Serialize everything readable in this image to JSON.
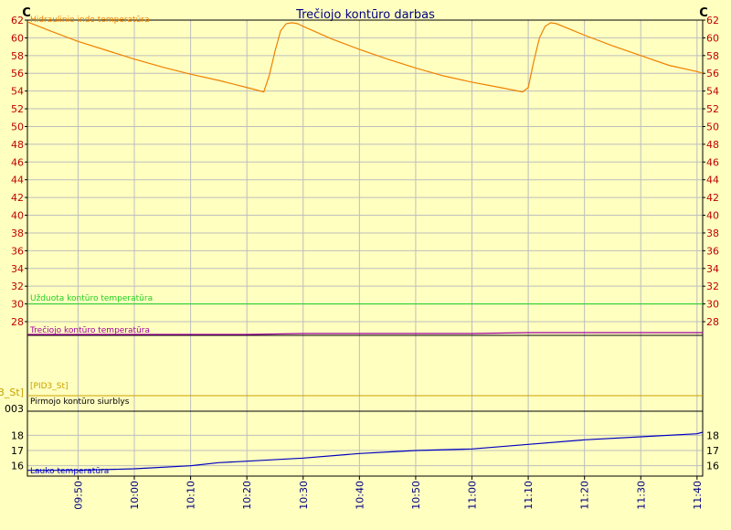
{
  "chart_data": {
    "type": "line",
    "title": "Trečiojo kontūro darbas",
    "y_unit_left": "C",
    "y_unit_right": "C",
    "upper_axis": {
      "ylim": [
        28,
        62
      ],
      "ticks": [
        28,
        30,
        32,
        34,
        36,
        38,
        40,
        42,
        44,
        46,
        48,
        50,
        52,
        54,
        56,
        58,
        60,
        62
      ]
    },
    "lower_axis": {
      "ylim": [
        15.5,
        18.5
      ],
      "ticks": [
        16,
        17,
        18
      ]
    },
    "state_axis_labels": [
      "003",
      "[PID3_St]"
    ],
    "x_ticks": [
      "09:50",
      "10:00",
      "10:10",
      "10:20",
      "10:30",
      "10:40",
      "10:50",
      "11:00",
      "11:10",
      "11:20",
      "11:30",
      "11:40"
    ],
    "grid": true,
    "colors": {
      "hidraulinio": "#F08000",
      "uzduota": "#20D020",
      "treciojo": "#A000A0",
      "pid": "#C8A000",
      "siurblys": "#000000",
      "lauko": "#0000C0",
      "axis_text": "#C00000",
      "time_text": "#000080",
      "grid": "#BEBEBE"
    },
    "series": {
      "hidraulinio": {
        "name": "Hidraulinio indo temperatūra",
        "x": [
          "09:41",
          "09:45",
          "09:50",
          "09:55",
          "10:00",
          "10:05",
          "10:10",
          "10:15",
          "10:20",
          "10:23",
          "10:24",
          "10:25",
          "10:26",
          "10:27",
          "10:28",
          "10:29",
          "10:30",
          "10:35",
          "10:40",
          "10:45",
          "10:50",
          "10:55",
          "11:00",
          "11:05",
          "11:09",
          "11:10",
          "11:11",
          "11:12",
          "11:13",
          "11:14",
          "11:15",
          "11:20",
          "11:25",
          "11:30",
          "11:35",
          "11:40",
          "11:41"
        ],
        "y": [
          61.8,
          60.8,
          59.6,
          58.6,
          57.6,
          56.7,
          55.9,
          55.2,
          54.4,
          53.9,
          55.8,
          58.5,
          60.8,
          61.6,
          61.7,
          61.6,
          61.3,
          59.9,
          58.7,
          57.6,
          56.6,
          55.7,
          55.0,
          54.4,
          53.9,
          54.4,
          57.4,
          60.0,
          61.3,
          61.7,
          61.6,
          60.3,
          59.1,
          58.0,
          56.9,
          56.2,
          56.0
        ]
      },
      "uzduota": {
        "name": "Užduota kontūro temperatūra",
        "x": [
          "09:41",
          "11:41"
        ],
        "y": [
          30,
          30
        ]
      },
      "treciojo": {
        "name": "Trečiojo kontūro temperatūra",
        "x": [
          "09:41",
          "10:00",
          "10:20",
          "10:30",
          "10:50",
          "11:00",
          "11:10",
          "11:20",
          "11:41"
        ],
        "y": [
          27.0,
          27.0,
          27.0,
          27.1,
          27.1,
          27.1,
          27.2,
          27.2,
          27.2
        ]
      },
      "pid": {
        "name": "[PID3_St]",
        "x": [
          "09:41",
          "11:41"
        ],
        "y": [
          1,
          1
        ]
      },
      "siurblys": {
        "name": "Pirmojo kontūro siurblys",
        "x": [
          "09:41",
          "11:41"
        ],
        "y": [
          3,
          3
        ]
      },
      "lauko": {
        "name": "Lauko temperatūra",
        "x": [
          "09:41",
          "09:50",
          "10:00",
          "10:10",
          "10:15",
          "10:20",
          "10:30",
          "10:40",
          "10:50",
          "11:00",
          "11:10",
          "11:20",
          "11:30",
          "11:40",
          "11:41"
        ],
        "y": [
          15.7,
          15.7,
          15.8,
          16.0,
          16.2,
          16.3,
          16.5,
          16.8,
          17.0,
          17.1,
          17.4,
          17.7,
          17.9,
          18.1,
          18.2
        ]
      }
    }
  }
}
